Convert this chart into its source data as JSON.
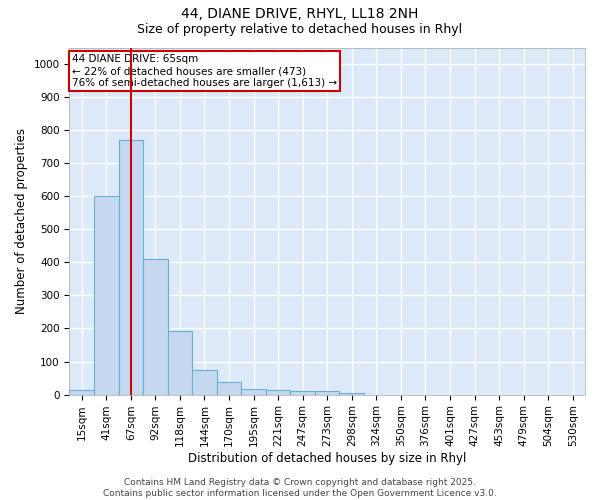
{
  "title_line1": "44, DIANE DRIVE, RHYL, LL18 2NH",
  "title_line2": "Size of property relative to detached houses in Rhyl",
  "xlabel": "Distribution of detached houses by size in Rhyl",
  "ylabel": "Number of detached properties",
  "categories": [
    "15sqm",
    "41sqm",
    "67sqm",
    "92sqm",
    "118sqm",
    "144sqm",
    "170sqm",
    "195sqm",
    "221sqm",
    "247sqm",
    "273sqm",
    "298sqm",
    "324sqm",
    "350sqm",
    "376sqm",
    "401sqm",
    "427sqm",
    "453sqm",
    "479sqm",
    "504sqm",
    "530sqm"
  ],
  "values": [
    15,
    600,
    770,
    410,
    193,
    75,
    38,
    18,
    15,
    12,
    12,
    6,
    0,
    0,
    0,
    0,
    0,
    0,
    0,
    0,
    0
  ],
  "bar_color": "#c5d8f0",
  "bar_edge_color": "#6aaed6",
  "vline_x": 2,
  "vline_color": "#cc0000",
  "annotation_text": "44 DIANE DRIVE: 65sqm\n← 22% of detached houses are smaller (473)\n76% of semi-detached houses are larger (1,613) →",
  "annotation_box_color": "#ffffff",
  "annotation_box_edge_color": "#cc0000",
  "ylim": [
    0,
    1050
  ],
  "yticks": [
    0,
    100,
    200,
    300,
    400,
    500,
    600,
    700,
    800,
    900,
    1000
  ],
  "bg_color": "#dce9f8",
  "fig_bg_color": "#ffffff",
  "grid_color": "#ffffff",
  "footer_text": "Contains HM Land Registry data © Crown copyright and database right 2025.\nContains public sector information licensed under the Open Government Licence v3.0.",
  "title_fontsize": 10,
  "subtitle_fontsize": 9,
  "axis_label_fontsize": 8.5,
  "tick_fontsize": 7.5,
  "annotation_fontsize": 7.5,
  "footer_fontsize": 6.5
}
